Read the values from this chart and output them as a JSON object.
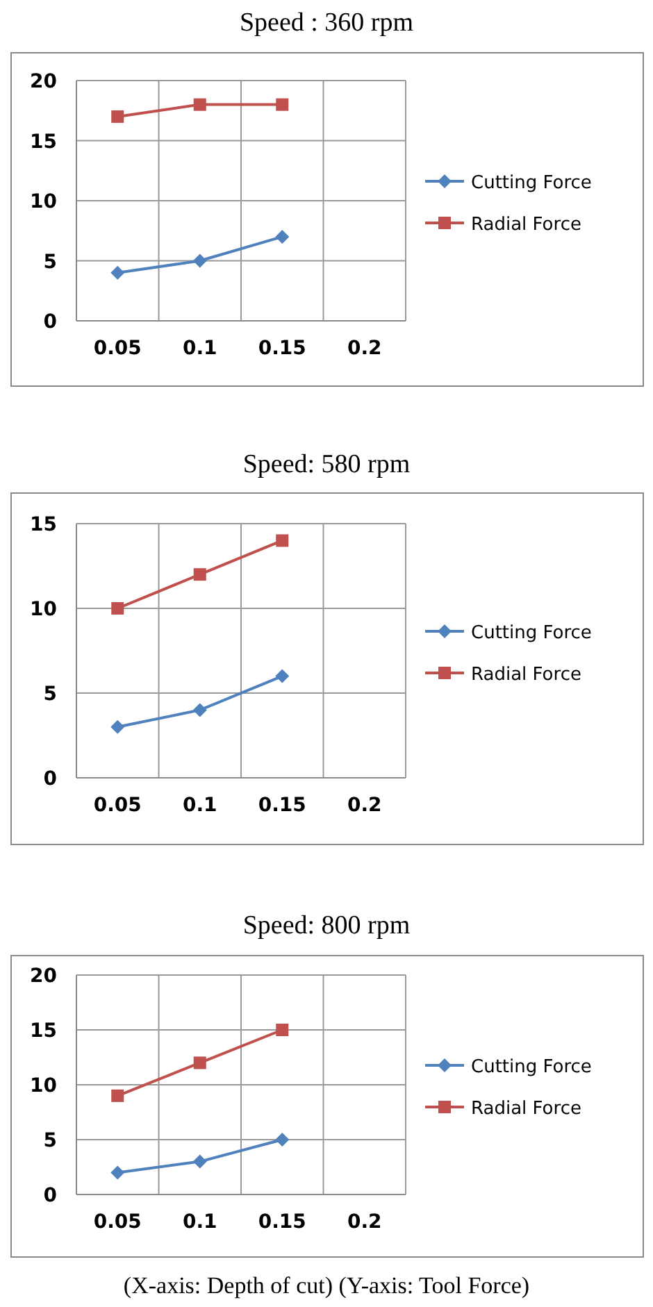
{
  "chart_data": [
    {
      "type": "line",
      "title": "Speed : 360 rpm",
      "categories": [
        "0.05",
        "0.1",
        "0.15",
        "0.2"
      ],
      "ylim": [
        0,
        20
      ],
      "yticks": [
        0,
        5,
        10,
        15,
        20
      ],
      "grid": true,
      "legend": "right",
      "series": [
        {
          "name": "Cutting Force",
          "color": "#4f81bd",
          "marker": "diamond",
          "values": [
            4,
            5,
            7,
            null
          ]
        },
        {
          "name": "Radial Force",
          "color": "#c0504d",
          "marker": "square",
          "values": [
            17,
            18,
            18,
            null
          ]
        }
      ]
    },
    {
      "type": "line",
      "title": "Speed: 580 rpm",
      "categories": [
        "0.05",
        "0.1",
        "0.15",
        "0.2"
      ],
      "ylim": [
        0,
        15
      ],
      "yticks": [
        0,
        5,
        10,
        15
      ],
      "grid": true,
      "legend": "right",
      "series": [
        {
          "name": "Cutting Force",
          "color": "#4f81bd",
          "marker": "diamond",
          "values": [
            3,
            4,
            6,
            null
          ]
        },
        {
          "name": "Radial Force",
          "color": "#c0504d",
          "marker": "square",
          "values": [
            10,
            12,
            14,
            null
          ]
        }
      ]
    },
    {
      "type": "line",
      "title": "Speed: 800 rpm",
      "categories": [
        "0.05",
        "0.1",
        "0.15",
        "0.2"
      ],
      "ylim": [
        0,
        20
      ],
      "yticks": [
        0,
        5,
        10,
        15,
        20
      ],
      "grid": true,
      "legend": "right",
      "annotations": [
        "(X-axis: Depth of cut) (Y-axis: Tool Force)"
      ],
      "series": [
        {
          "name": "Cutting Force",
          "color": "#4f81bd",
          "marker": "diamond",
          "values": [
            2,
            3,
            5,
            null
          ]
        },
        {
          "name": "Radial Force",
          "color": "#c0504d",
          "marker": "square",
          "values": [
            9,
            12,
            15,
            null
          ]
        }
      ]
    }
  ]
}
